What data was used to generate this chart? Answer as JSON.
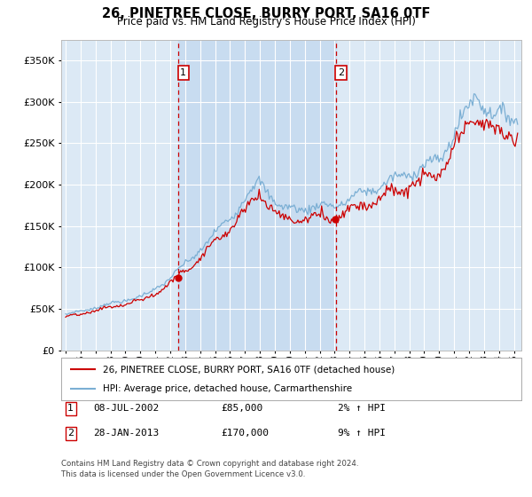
{
  "title": "26, PINETREE CLOSE, BURRY PORT, SA16 0TF",
  "subtitle": "Price paid vs. HM Land Registry's House Price Index (HPI)",
  "fig_bg": "#f2f2f2",
  "plot_bg": "#dce9f5",
  "grid_color": "#ffffff",
  "span_color": "#c8dcf0",
  "red_line": "#cc0000",
  "blue_line": "#7bafd4",
  "sale1_date": "08-JUL-2002",
  "sale1_price": 85000,
  "sale1_hpi_pct": "2%",
  "sale2_date": "28-JAN-2013",
  "sale2_price": 170000,
  "sale2_hpi_pct": "9%",
  "legend1": "26, PINETREE CLOSE, BURRY PORT, SA16 0TF (detached house)",
  "legend2": "HPI: Average price, detached house, Carmarthenshire",
  "footer": "Contains HM Land Registry data © Crown copyright and database right 2024.\nThis data is licensed under the Open Government Licence v3.0.",
  "sale1_x": 2002.52,
  "sale2_x": 2013.08,
  "ylim_min": 0,
  "ylim_max": 375000,
  "xlim_min": 1994.7,
  "xlim_max": 2025.5
}
